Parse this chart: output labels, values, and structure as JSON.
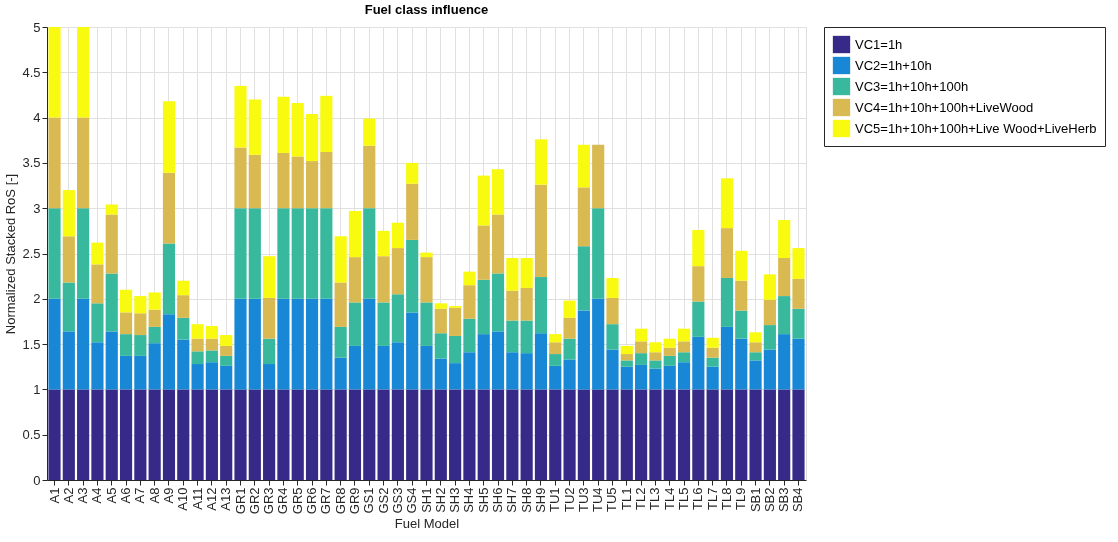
{
  "chart_data": {
    "type": "bar",
    "stacked": true,
    "title": "Fuel class influence",
    "xlabel": "Fuel Model",
    "ylabel": "Normalized Stacked RoS [-]",
    "categories": [
      "A1",
      "A2",
      "A3",
      "A4",
      "A5",
      "A6",
      "A7",
      "A8",
      "A9",
      "A10",
      "A11",
      "A12",
      "A13",
      "GR1",
      "GR2",
      "GR3",
      "GR4",
      "GR5",
      "GR6",
      "GR7",
      "GR8",
      "GR9",
      "GS1",
      "GS2",
      "GS3",
      "GS4",
      "SH1",
      "SH2",
      "SH3",
      "SH4",
      "SH5",
      "SH6",
      "SH7",
      "SH8",
      "SH9",
      "TU1",
      "TU2",
      "TU3",
      "TU4",
      "TU5",
      "TL1",
      "TL2",
      "TL3",
      "TL4",
      "TL5",
      "TL6",
      "TL7",
      "TL8",
      "TL9",
      "SB1",
      "SB2",
      "SB3",
      "SB4"
    ],
    "series": [
      {
        "name": "VC1=1h",
        "color": "#352a87",
        "values": [
          1,
          1,
          1,
          1,
          1,
          1,
          1,
          1,
          1,
          1,
          1,
          1,
          1,
          1,
          1,
          1,
          1,
          1,
          1,
          1,
          1,
          1,
          1,
          1,
          1,
          1,
          1,
          1,
          1,
          1,
          1,
          1,
          1,
          1,
          1,
          1,
          1,
          1,
          1,
          1,
          1,
          1,
          1,
          1,
          1,
          1,
          1,
          1,
          1,
          1,
          1,
          1,
          1
        ]
      },
      {
        "name": "VC2=1h+10h",
        "color": "#1787d6",
        "values": [
          1,
          0.64,
          1,
          0.52,
          0.64,
          0.37,
          0.37,
          0.51,
          0.83,
          0.55,
          0.28,
          0.3,
          0.26,
          1,
          1,
          0.28,
          1,
          1,
          1,
          1,
          0.35,
          0.48,
          1,
          0.48,
          0.52,
          0.85,
          0.48,
          0.34,
          0.29,
          0.41,
          0.61,
          0.64,
          0.41,
          0.4,
          0.62,
          0.26,
          0.33,
          0.87,
          1,
          0.44,
          0.25,
          0.27,
          0.23,
          0.26,
          0.3,
          0.58,
          0.25,
          0.69,
          0.56,
          0.32,
          0.44,
          0.61,
          0.56
        ]
      },
      {
        "name": "VC3=1h+10h+100h",
        "color": "#38b99e",
        "values": [
          1,
          0.54,
          1,
          0.43,
          0.64,
          0.24,
          0.23,
          0.18,
          0.78,
          0.24,
          0.14,
          0.13,
          0.11,
          1,
          1,
          0.28,
          1,
          1,
          1,
          1,
          0.34,
          0.48,
          1,
          0.48,
          0.53,
          0.8,
          0.48,
          0.28,
          0.3,
          0.37,
          0.6,
          0.64,
          0.35,
          0.36,
          0.62,
          0.13,
          0.23,
          0.71,
          1,
          0.28,
          0.07,
          0.13,
          0.09,
          0.11,
          0.11,
          0.39,
          0.1,
          0.54,
          0.31,
          0.09,
          0.27,
          0.42,
          0.33
        ]
      },
      {
        "name": "VC4=1h+10h+100h+LiveWood",
        "color": "#d8b952",
        "values": [
          1,
          0.51,
          1,
          0.43,
          0.65,
          0.24,
          0.24,
          0.19,
          0.78,
          0.25,
          0.14,
          0.13,
          0.11,
          0.67,
          0.59,
          0.45,
          0.61,
          0.57,
          0.52,
          0.62,
          0.49,
          0.5,
          0.69,
          0.51,
          0.51,
          0.62,
          0.5,
          0.27,
          0.31,
          0.37,
          0.6,
          0.65,
          0.33,
          0.36,
          1.02,
          0.13,
          0.23,
          0.65,
          0.7,
          0.29,
          0.07,
          0.13,
          0.09,
          0.09,
          0.12,
          0.39,
          0.11,
          0.55,
          0.33,
          0.11,
          0.28,
          0.42,
          0.33
        ]
      },
      {
        "name": "VC5=1h+10h+100h+Live Wood+LiveHerb",
        "color": "#f8fa0f",
        "values": [
          1,
          0.51,
          1,
          0.24,
          0.11,
          0.25,
          0.19,
          0.19,
          0.79,
          0.16,
          0.16,
          0.14,
          0.12,
          0.68,
          0.61,
          0.46,
          0.62,
          0.59,
          0.52,
          0.62,
          0.51,
          0.51,
          0.3,
          0.28,
          0.28,
          0.23,
          0.05,
          0.06,
          0.02,
          0.15,
          0.55,
          0.5,
          0.36,
          0.33,
          0.5,
          0.09,
          0.19,
          0.47,
          null,
          0.22,
          0.09,
          0.14,
          0.11,
          0.1,
          0.14,
          0.4,
          0.11,
          0.55,
          0.33,
          0.11,
          0.28,
          0.42,
          0.34
        ]
      }
    ],
    "ylim": [
      0,
      5
    ],
    "yticks": [
      0,
      0.5,
      1,
      1.5,
      2,
      2.5,
      3,
      3.5,
      4,
      4.5,
      5
    ],
    "grid": true,
    "legend": "top right"
  }
}
